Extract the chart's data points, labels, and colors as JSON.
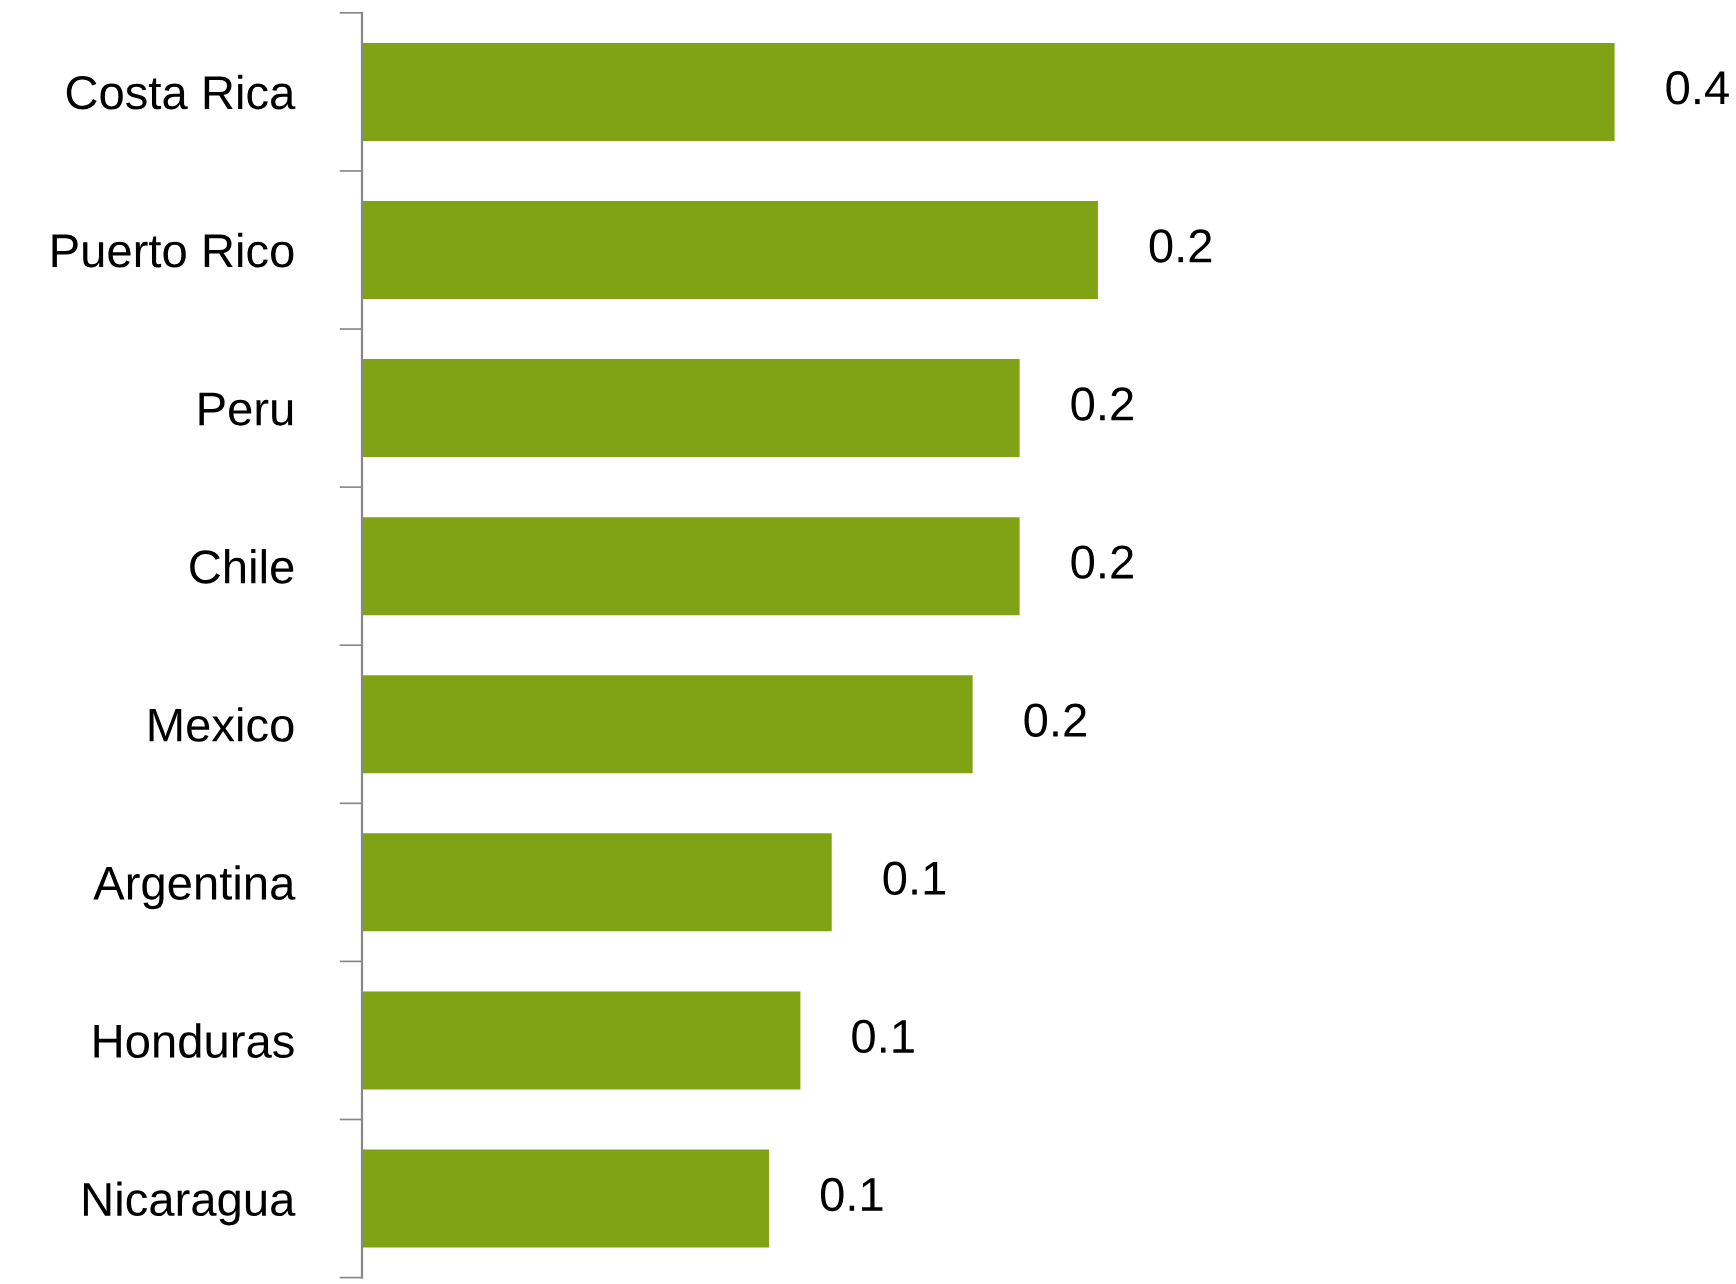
{
  "chart_data": {
    "type": "bar",
    "orientation": "horizontal",
    "categories": [
      "Costa Rica",
      "Puerto Rico",
      "Peru",
      "Chile",
      "Mexico",
      "Argentina",
      "Honduras",
      "Nicaragua"
    ],
    "values": [
      0.4,
      0.235,
      0.21,
      0.21,
      0.195,
      0.15,
      0.14,
      0.13
    ],
    "value_labels": [
      "0.4",
      "0.2",
      "0.2",
      "0.2",
      "0.2",
      "0.1",
      "0.1",
      "0.1"
    ],
    "color": "#80a315",
    "grid": false,
    "legend": false,
    "tick_labels": "y"
  }
}
